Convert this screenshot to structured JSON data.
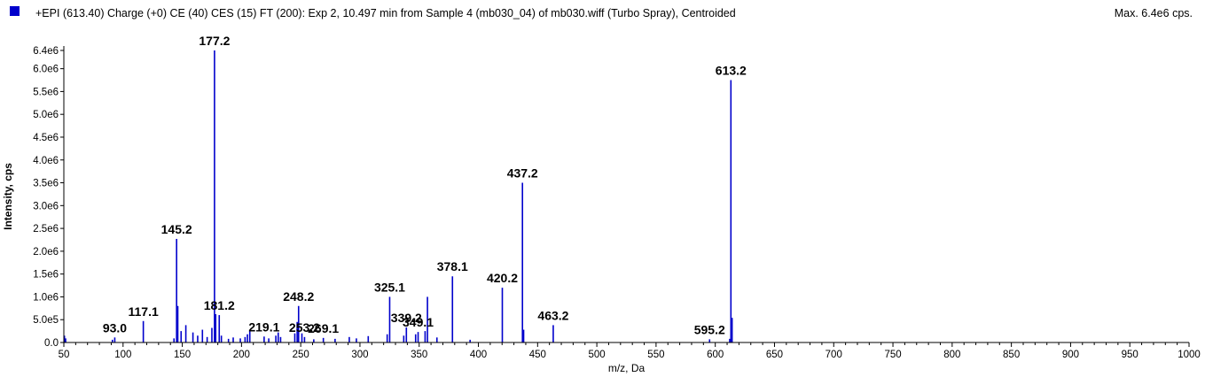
{
  "header": {
    "title": "+EPI (613.40) Charge (+0) CE (40) CES (15) FT (200): Exp 2, 10.497 min from Sample 4 (mb030_04) of mb030.wiff (Turbo Spray), Centroided",
    "max_text": "Max. 6.4e6 cps.",
    "series_color": "#0000cc"
  },
  "chart_data": {
    "type": "bar",
    "title": "+EPI (613.40) Charge (+0) CE (40) CES (15) FT (200): Exp 2, 10.497 min from Sample 4 (mb030_04) of mb030.wiff (Turbo Spray), Centroided",
    "xlabel": "m/z, Da",
    "ylabel": "Intensity, cps",
    "xlim": [
      50,
      1000
    ],
    "ylim": [
      0,
      6400000.0
    ],
    "xticks": [
      50,
      100,
      150,
      200,
      250,
      300,
      350,
      400,
      450,
      500,
      550,
      600,
      650,
      700,
      750,
      800,
      850,
      900,
      950,
      1000
    ],
    "yticks": [
      {
        "value": 0,
        "label": "0.0"
      },
      {
        "value": 500000,
        "label": "5.0e5"
      },
      {
        "value": 1000000,
        "label": "1.0e6"
      },
      {
        "value": 1500000,
        "label": "1.5e6"
      },
      {
        "value": 2000000,
        "label": "2.0e6"
      },
      {
        "value": 2500000,
        "label": "2.5e6"
      },
      {
        "value": 3000000,
        "label": "3.0e6"
      },
      {
        "value": 3500000,
        "label": "3.5e6"
      },
      {
        "value": 4000000,
        "label": "4.0e6"
      },
      {
        "value": 4500000,
        "label": "4.5e6"
      },
      {
        "value": 5000000,
        "label": "5.0e6"
      },
      {
        "value": 5500000,
        "label": "5.5e6"
      },
      {
        "value": 6000000,
        "label": "6.0e6"
      },
      {
        "value": 6400000,
        "label": "6.4e6"
      }
    ],
    "grid": false,
    "peaks": [
      {
        "x": 50.5,
        "y": 150000
      },
      {
        "x": 51.5,
        "y": 90000
      },
      {
        "x": 91.0,
        "y": 60000
      },
      {
        "x": 93.0,
        "y": 110000
      },
      {
        "x": 117.1,
        "y": 470000
      },
      {
        "x": 143.0,
        "y": 90000
      },
      {
        "x": 145.2,
        "y": 2270000
      },
      {
        "x": 146.2,
        "y": 800000
      },
      {
        "x": 149.0,
        "y": 250000
      },
      {
        "x": 153.0,
        "y": 380000
      },
      {
        "x": 159.0,
        "y": 220000
      },
      {
        "x": 163.0,
        "y": 150000
      },
      {
        "x": 167.0,
        "y": 280000
      },
      {
        "x": 171.0,
        "y": 120000
      },
      {
        "x": 175.0,
        "y": 320000
      },
      {
        "x": 177.2,
        "y": 6400000
      },
      {
        "x": 178.2,
        "y": 620000
      },
      {
        "x": 181.2,
        "y": 600000
      },
      {
        "x": 183.0,
        "y": 150000
      },
      {
        "x": 189.0,
        "y": 80000
      },
      {
        "x": 193.0,
        "y": 110000
      },
      {
        "x": 199.0,
        "y": 90000
      },
      {
        "x": 203.0,
        "y": 120000
      },
      {
        "x": 205.0,
        "y": 180000
      },
      {
        "x": 207.0,
        "y": 250000
      },
      {
        "x": 219.1,
        "y": 130000
      },
      {
        "x": 223.0,
        "y": 90000
      },
      {
        "x": 229.0,
        "y": 150000
      },
      {
        "x": 231.0,
        "y": 220000
      },
      {
        "x": 233.0,
        "y": 120000
      },
      {
        "x": 245.0,
        "y": 200000
      },
      {
        "x": 247.0,
        "y": 450000
      },
      {
        "x": 248.2,
        "y": 800000
      },
      {
        "x": 251.0,
        "y": 200000
      },
      {
        "x": 253.2,
        "y": 120000
      },
      {
        "x": 261.0,
        "y": 70000
      },
      {
        "x": 269.1,
        "y": 100000
      },
      {
        "x": 279.0,
        "y": 80000
      },
      {
        "x": 291.0,
        "y": 120000
      },
      {
        "x": 297.0,
        "y": 90000
      },
      {
        "x": 307.0,
        "y": 140000
      },
      {
        "x": 323.0,
        "y": 180000
      },
      {
        "x": 325.1,
        "y": 1000000
      },
      {
        "x": 337.0,
        "y": 150000
      },
      {
        "x": 339.2,
        "y": 330000
      },
      {
        "x": 347.0,
        "y": 180000
      },
      {
        "x": 349.1,
        "y": 230000
      },
      {
        "x": 355.0,
        "y": 250000
      },
      {
        "x": 357.0,
        "y": 1000000
      },
      {
        "x": 365.0,
        "y": 110000
      },
      {
        "x": 378.1,
        "y": 1450000
      },
      {
        "x": 393.0,
        "y": 60000
      },
      {
        "x": 420.2,
        "y": 1200000
      },
      {
        "x": 437.2,
        "y": 3500000
      },
      {
        "x": 438.2,
        "y": 280000
      },
      {
        "x": 463.2,
        "y": 380000
      },
      {
        "x": 595.2,
        "y": 70000
      },
      {
        "x": 612.2,
        "y": 80000
      },
      {
        "x": 613.2,
        "y": 5750000
      },
      {
        "x": 614.2,
        "y": 540000
      }
    ],
    "peak_labels": [
      {
        "text": "93.0",
        "x": 93.0,
        "y": 110000
      },
      {
        "text": "117.1",
        "x": 117.1,
        "y": 470000
      },
      {
        "text": "145.2",
        "x": 145.2,
        "y": 2270000
      },
      {
        "text": "177.2",
        "x": 177.2,
        "y": 6400000
      },
      {
        "text": "181.2",
        "x": 181.2,
        "y": 600000
      },
      {
        "text": "219.1",
        "x": 219.1,
        "y": 130000
      },
      {
        "text": "248.2",
        "x": 248.2,
        "y": 800000
      },
      {
        "text": "253.2",
        "x": 253.2,
        "y": 120000
      },
      {
        "text": "269.1",
        "x": 269.1,
        "y": 100000
      },
      {
        "text": "325.1",
        "x": 325.1,
        "y": 1000000
      },
      {
        "text": "339.2",
        "x": 339.2,
        "y": 330000
      },
      {
        "text": "349.1",
        "x": 349.1,
        "y": 230000
      },
      {
        "text": "378.1",
        "x": 378.1,
        "y": 1450000
      },
      {
        "text": "420.2",
        "x": 420.2,
        "y": 1200000
      },
      {
        "text": "437.2",
        "x": 437.2,
        "y": 3500000
      },
      {
        "text": "463.2",
        "x": 463.2,
        "y": 380000
      },
      {
        "text": "595.2",
        "x": 595.2,
        "y": 70000
      },
      {
        "text": "613.2",
        "x": 613.2,
        "y": 5750000
      }
    ]
  }
}
